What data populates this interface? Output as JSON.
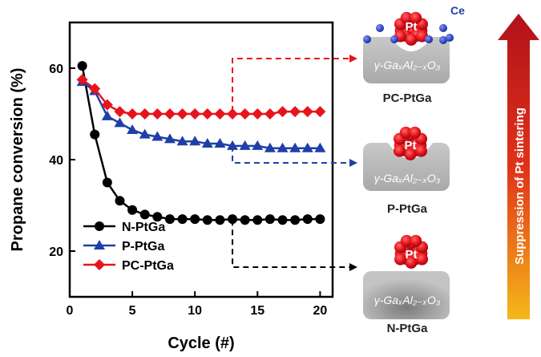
{
  "chart_data": {
    "type": "line",
    "xlabel": "Cycle (#)",
    "ylabel": "Propane conversion (%)",
    "xlim": [
      0,
      21
    ],
    "ylim": [
      10,
      70
    ],
    "xticks": [
      0,
      5,
      10,
      15,
      20
    ],
    "yticks": [
      20,
      40,
      60
    ],
    "grid": false,
    "legend_position": "bottom-left",
    "series": [
      {
        "name": "N-PtGa",
        "color": "#000000",
        "marker": "circle",
        "x": [
          1,
          2,
          3,
          4,
          5,
          6,
          7,
          8,
          9,
          10,
          11,
          12,
          13,
          14,
          15,
          16,
          17,
          18,
          19,
          20
        ],
        "values": [
          60.5,
          45.5,
          35,
          31,
          29,
          28,
          27.5,
          27,
          27,
          27,
          26.8,
          26.8,
          27,
          26.8,
          26.8,
          27,
          26.8,
          26.8,
          27,
          27
        ]
      },
      {
        "name": "P-PtGa",
        "color": "#1f3fa8",
        "marker": "triangle",
        "x": [
          1,
          2,
          3,
          4,
          5,
          6,
          7,
          8,
          9,
          10,
          11,
          12,
          13,
          14,
          15,
          16,
          17,
          18,
          19,
          20
        ],
        "values": [
          57,
          55,
          49.5,
          48,
          46.5,
          45.5,
          45,
          44.5,
          44,
          44,
          43.5,
          43.5,
          43,
          43,
          43,
          42.5,
          42.5,
          42.5,
          42.5,
          42.5
        ]
      },
      {
        "name": "PC-PtGa",
        "color": "#e8141c",
        "marker": "diamond",
        "x": [
          1,
          2,
          3,
          4,
          5,
          6,
          7,
          8,
          9,
          10,
          11,
          12,
          13,
          14,
          15,
          16,
          17,
          18,
          19,
          20
        ],
        "values": [
          57.5,
          55.5,
          52,
          50.5,
          50,
          50,
          50,
          50,
          50,
          50,
          50,
          50,
          50,
          50,
          50,
          50,
          50.5,
          50.5,
          50.5,
          50.5
        ]
      }
    ]
  },
  "schematics": [
    {
      "label": "PC-PtGa",
      "pt_label": "Pt",
      "support_label": "γ-GaₓAl₂₋ₓO₃",
      "ce_label": "Ce",
      "arrow_color": "#e8141c"
    },
    {
      "label": "P-PtGa",
      "pt_label": "Pt",
      "support_label": "γ-GaₓAl₂₋ₓO₃",
      "arrow_color": "#1f3fa8"
    },
    {
      "label": "N-PtGa",
      "pt_label": "Pt",
      "support_label": "γ-GaₓAl₂₋ₓO₃",
      "arrow_color": "#000000"
    }
  ],
  "suppression_arrow": {
    "label": "Suppression of Pt sintering",
    "gradient_top": "#b0121a",
    "gradient_bottom": "#f5b81a"
  }
}
